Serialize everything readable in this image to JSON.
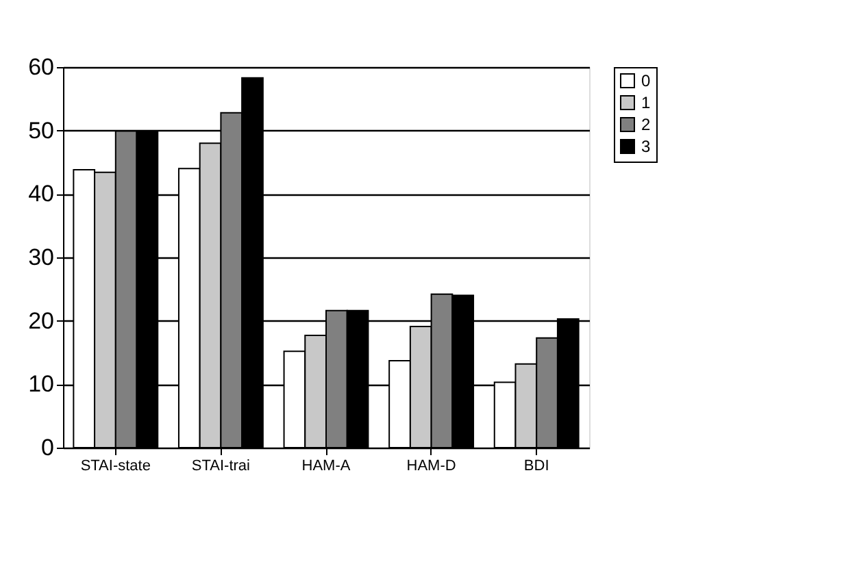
{
  "chart_data": {
    "type": "bar",
    "categories": [
      "STAI-state",
      "STAI-trai",
      "HAM-A",
      "HAM-D",
      "BDI"
    ],
    "series": [
      {
        "name": "0",
        "color": "#ffffff",
        "values": [
          43.8,
          44.0,
          15.2,
          13.7,
          10.3
        ]
      },
      {
        "name": "1",
        "color": "#c8c8c8",
        "values": [
          43.4,
          48.0,
          17.7,
          19.1,
          13.2
        ]
      },
      {
        "name": "2",
        "color": "#808080",
        "values": [
          49.9,
          52.8,
          21.6,
          24.2,
          17.3
        ]
      },
      {
        "name": "3",
        "color": "#000000",
        "values": [
          49.9,
          58.3,
          21.6,
          24.0,
          20.3
        ]
      }
    ],
    "ylim": [
      0,
      60
    ],
    "yticks": [
      0,
      10,
      20,
      30,
      40,
      50,
      60
    ],
    "grid": "y",
    "legend": "right"
  }
}
